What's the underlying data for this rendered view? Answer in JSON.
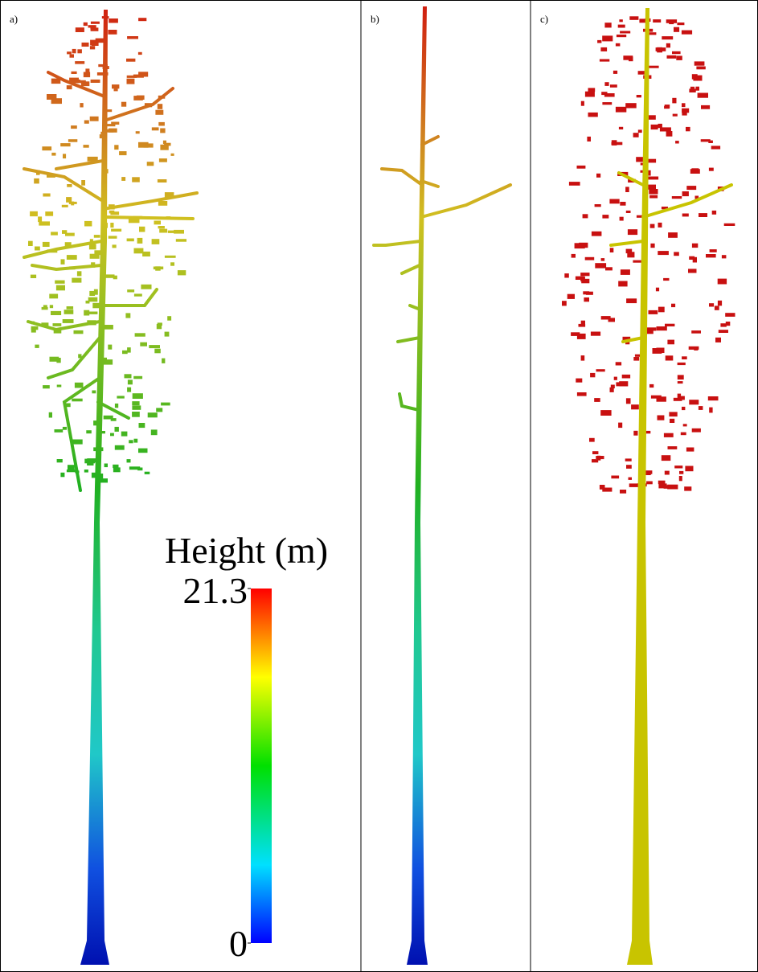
{
  "panels": [
    {
      "label": "a)"
    },
    {
      "label": "b)"
    },
    {
      "label": "c)"
    }
  ],
  "colorbar": {
    "title": "Height (m)",
    "max": 21.3,
    "min": 0
  }
}
